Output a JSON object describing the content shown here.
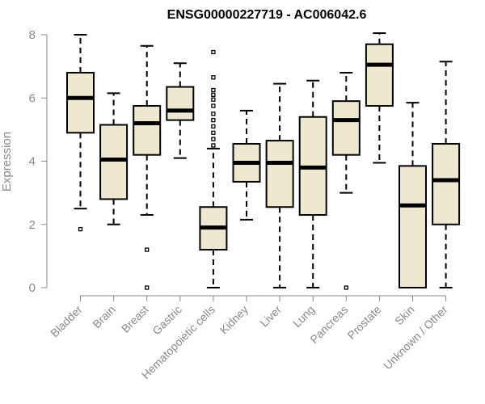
{
  "chart_data": {
    "type": "boxplot",
    "title": "ENSG00000227719 - AC006042.6",
    "xlabel": "",
    "ylabel": "Expression",
    "ylim": [
      0,
      8
    ],
    "yticks": [
      0,
      2,
      4,
      6,
      8
    ],
    "grid": false,
    "box_color": "#efe8d0",
    "categories": [
      "Bladder",
      "Brain",
      "Breast",
      "Gastric",
      "Hematopoietic cells",
      "Kidney",
      "Liver",
      "Lung",
      "Pancreas",
      "Prostate",
      "Skin",
      "Unknown / Other"
    ],
    "boxes": [
      {
        "name": "Bladder",
        "whisker_low": 2.5,
        "q1": 4.9,
        "median": 6.0,
        "q3": 6.8,
        "whisker_high": 8.0,
        "outliers": [
          1.85
        ]
      },
      {
        "name": "Brain",
        "whisker_low": 2.0,
        "q1": 2.8,
        "median": 4.05,
        "q3": 5.15,
        "whisker_high": 6.15,
        "outliers": []
      },
      {
        "name": "Breast",
        "whisker_low": 2.3,
        "q1": 4.2,
        "median": 5.2,
        "q3": 5.75,
        "whisker_high": 7.65,
        "outliers": [
          1.2,
          0.0
        ]
      },
      {
        "name": "Gastric",
        "whisker_low": 4.1,
        "q1": 5.3,
        "median": 5.6,
        "q3": 6.35,
        "whisker_high": 7.1,
        "outliers": []
      },
      {
        "name": "Hematopoietic cells",
        "whisker_low": 0.0,
        "q1": 1.2,
        "median": 1.9,
        "q3": 2.55,
        "whisker_high": 4.4,
        "outliers": [
          7.45,
          6.65,
          6.25,
          6.1,
          5.95,
          5.75,
          5.5,
          5.3,
          5.1,
          4.9,
          4.7,
          4.5
        ]
      },
      {
        "name": "Kidney",
        "whisker_low": 2.15,
        "q1": 3.35,
        "median": 3.95,
        "q3": 4.55,
        "whisker_high": 5.6,
        "outliers": []
      },
      {
        "name": "Liver",
        "whisker_low": 0.0,
        "q1": 2.55,
        "median": 3.95,
        "q3": 4.65,
        "whisker_high": 6.45,
        "outliers": []
      },
      {
        "name": "Lung",
        "whisker_low": 0.0,
        "q1": 2.3,
        "median": 3.8,
        "q3": 5.4,
        "whisker_high": 6.55,
        "outliers": []
      },
      {
        "name": "Pancreas",
        "whisker_low": 3.0,
        "q1": 4.2,
        "median": 5.3,
        "q3": 5.9,
        "whisker_high": 6.8,
        "outliers": [
          0.0
        ]
      },
      {
        "name": "Prostate",
        "whisker_low": 3.95,
        "q1": 5.75,
        "median": 7.05,
        "q3": 7.7,
        "whisker_high": 8.05,
        "outliers": []
      },
      {
        "name": "Skin",
        "whisker_low": 0.0,
        "q1": 0.0,
        "median": 2.6,
        "q3": 3.85,
        "whisker_high": 5.85,
        "outliers": []
      },
      {
        "name": "Unknown / Other",
        "whisker_low": 0.0,
        "q1": 2.0,
        "median": 3.4,
        "q3": 4.55,
        "whisker_high": 7.15,
        "outliers": []
      }
    ]
  }
}
